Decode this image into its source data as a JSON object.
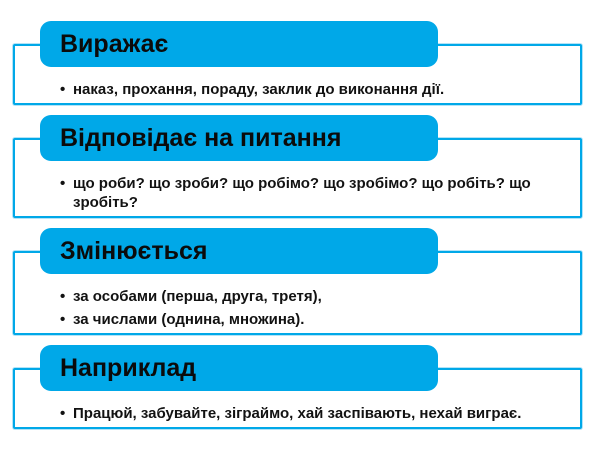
{
  "page": {
    "background": "#ffffff",
    "language": "uk"
  },
  "colors": {
    "accent_blue": "#00A8E8",
    "border_halo": "#b3e3f7",
    "header_text": "#0b0b0b",
    "body_text": "#121212"
  },
  "sections": [
    {
      "title": "Виражає",
      "bullets": [
        "наказ, прохання, пораду, заклик до виконання дії."
      ]
    },
    {
      "title": "Відповідає на питання",
      "bullets": [
        "що роби? що зроби? що робімо? що зробімо? що робіть? що зробіть?"
      ]
    },
    {
      "title": "Змінюється",
      "bullets": [
        "за особами (перша, друга, третя),",
        "за числами (однина, множина)."
      ]
    },
    {
      "title": "Наприклад",
      "bullets": [
        "Працюй, забувайте, зіграймо, хай заспівають, нехай виграє."
      ]
    }
  ]
}
